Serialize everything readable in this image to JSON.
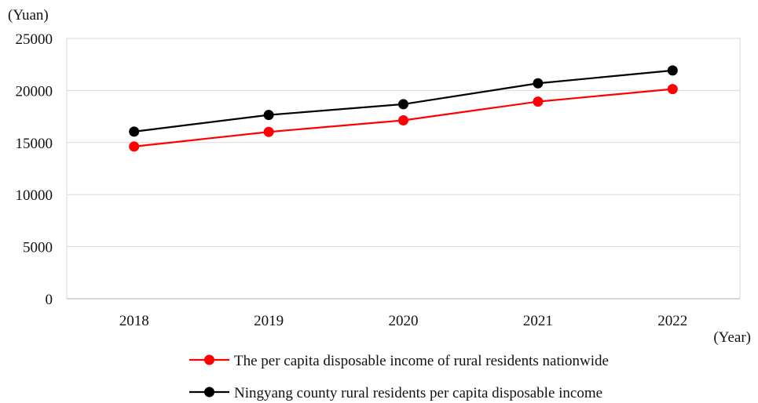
{
  "chart_data": {
    "type": "line",
    "title": "",
    "ylabel": "(Yuan)",
    "xlabel": "(Year)",
    "categories": [
      "2018",
      "2019",
      "2020",
      "2021",
      "2022"
    ],
    "ylim": [
      0,
      25000
    ],
    "yticks": [
      0,
      5000,
      10000,
      15000,
      20000,
      25000
    ],
    "grid": "horizontal",
    "legend_position": "bottom",
    "series": [
      {
        "name": "The per capita disposable income of rural residents nationwide",
        "color": "#ff0000",
        "values": [
          14617,
          16021,
          17131,
          18931,
          20133
        ]
      },
      {
        "name": "Ningyang county rural residents per capita disposable income",
        "color": "#000000",
        "values": [
          16050,
          17650,
          18680,
          20690,
          21920
        ]
      }
    ]
  }
}
